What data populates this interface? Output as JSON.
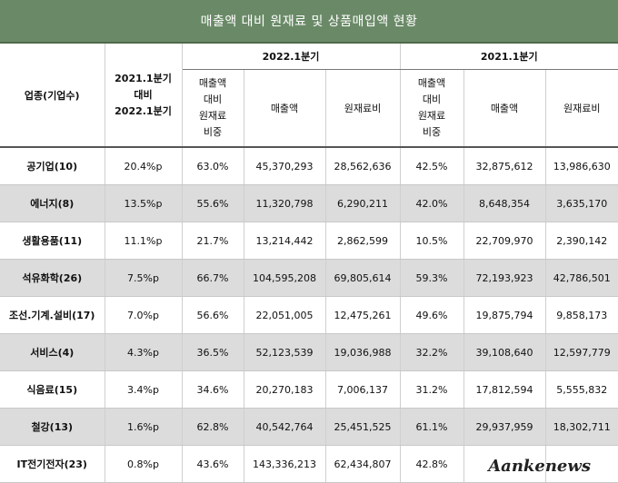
{
  "title": "매출액 대비 원재료 및 상품매입액 현황",
  "header": {
    "industry_col": "업종(기업수)",
    "change_col": "2021.1분기\n대비\n2022.1분기",
    "group_2022": "2022.1분기",
    "group_2021": "2021.1분기",
    "ratio_col": "매출액\n대비\n원재료\n비중",
    "sales_col": "매출액",
    "material_col": "원재료비"
  },
  "rows": [
    {
      "industry": "공기업(10)",
      "change": "20.4%p",
      "ratio_2022": "63.0%",
      "sales_2022": "45,370,293",
      "material_2022": "28,562,636",
      "ratio_2021": "42.5%",
      "sales_2021": "32,875,612",
      "material_2021": "13,986,630"
    },
    {
      "industry": "에너지(8)",
      "change": "13.5%p",
      "ratio_2022": "55.6%",
      "sales_2022": "11,320,798",
      "material_2022": "6,290,211",
      "ratio_2021": "42.0%",
      "sales_2021": "8,648,354",
      "material_2021": "3,635,170"
    },
    {
      "industry": "생활용품(11)",
      "change": "11.1%p",
      "ratio_2022": "21.7%",
      "sales_2022": "13,214,442",
      "material_2022": "2,862,599",
      "ratio_2021": "10.5%",
      "sales_2021": "22,709,970",
      "material_2021": "2,390,142"
    },
    {
      "industry": "석유화학(26)",
      "change": "7.5%p",
      "ratio_2022": "66.7%",
      "sales_2022": "104,595,208",
      "material_2022": "69,805,614",
      "ratio_2021": "59.3%",
      "sales_2021": "72,193,923",
      "material_2021": "42,786,501"
    },
    {
      "industry": "조선.기계.설비(17)",
      "change": "7.0%p",
      "ratio_2022": "56.6%",
      "sales_2022": "22,051,005",
      "material_2022": "12,475,261",
      "ratio_2021": "49.6%",
      "sales_2021": "19,875,794",
      "material_2021": "9,858,173"
    },
    {
      "industry": "서비스(4)",
      "change": "4.3%p",
      "ratio_2022": "36.5%",
      "sales_2022": "52,123,539",
      "material_2022": "19,036,988",
      "ratio_2021": "32.2%",
      "sales_2021": "39,108,640",
      "material_2021": "12,597,779"
    },
    {
      "industry": "식음료(15)",
      "change": "3.4%p",
      "ratio_2022": "34.6%",
      "sales_2022": "20,270,183",
      "material_2022": "7,006,137",
      "ratio_2021": "31.2%",
      "sales_2021": "17,812,594",
      "material_2021": "5,555,832"
    },
    {
      "industry": "철강(13)",
      "change": "1.6%p",
      "ratio_2022": "62.8%",
      "sales_2022": "40,542,764",
      "material_2022": "25,451,525",
      "ratio_2021": "61.1%",
      "sales_2021": "29,937,959",
      "material_2021": "18,302,711"
    },
    {
      "industry": "IT전기전자(23)",
      "change": "0.8%p",
      "ratio_2022": "43.6%",
      "sales_2022": "143,336,213",
      "material_2022": "62,434,807",
      "ratio_2021": "42.8%",
      "sales_2021": "",
      "material_2021": ""
    }
  ],
  "watermark": "Aankenews",
  "colors": {
    "title_bg": "#6a8a67",
    "shade_row": "#dcdcdc"
  }
}
